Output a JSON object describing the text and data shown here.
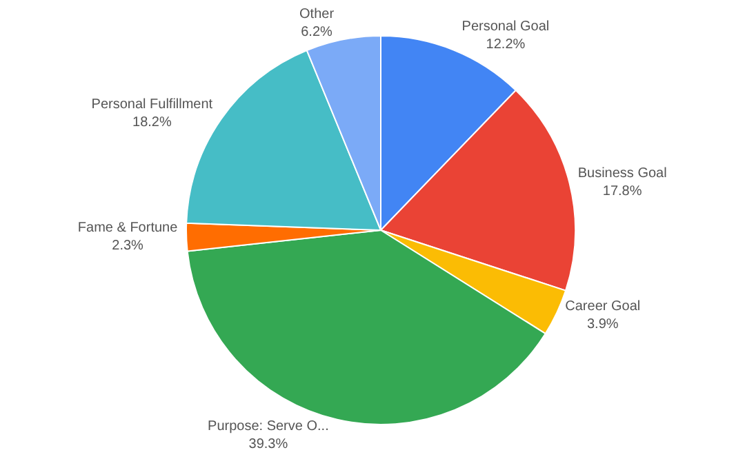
{
  "chart_data": {
    "type": "pie",
    "categories": [
      "Personal Goal",
      "Business Goal",
      "Career Goal",
      "Purpose: Serve O...",
      "Fame & Fortune",
      "Personal Fulfillment",
      "Other"
    ],
    "values": [
      12.2,
      17.8,
      3.9,
      39.3,
      2.3,
      18.2,
      6.2
    ],
    "value_labels": [
      "12.2%",
      "17.8%",
      "3.9%",
      "39.3%",
      "2.3%",
      "18.2%",
      "6.2%"
    ],
    "colors": [
      "#4285f4",
      "#ea4335",
      "#fbbc04",
      "#34a853",
      "#ff6d01",
      "#46bdc6",
      "#7baaf7"
    ],
    "legend": false
  }
}
